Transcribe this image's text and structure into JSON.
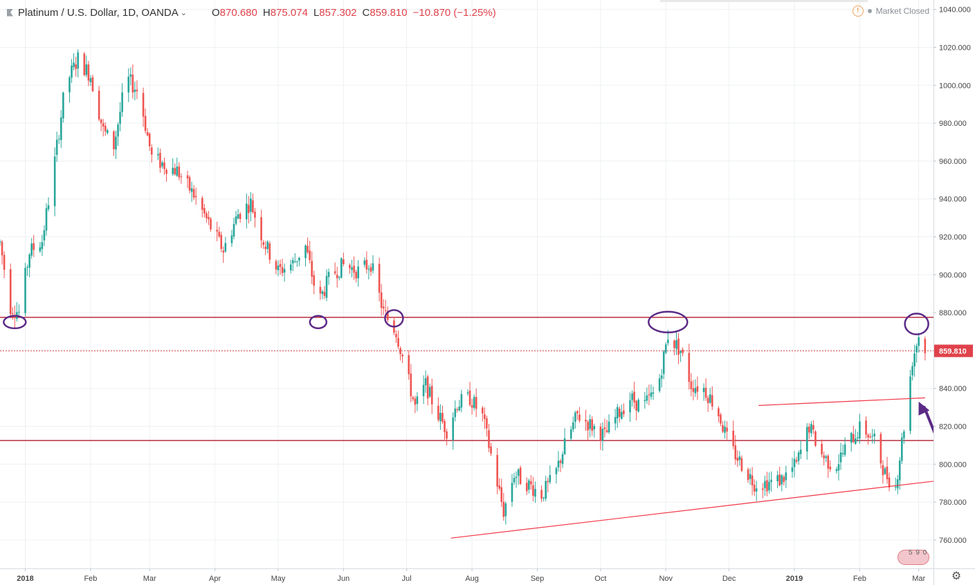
{
  "header": {
    "symbol": "Platinum / U.S. Dollar, 1D, OANDA",
    "caret": "⌄",
    "ohlc": [
      {
        "key": "O",
        "value": "870.680"
      },
      {
        "key": "H",
        "value": "875.074"
      },
      {
        "key": "L",
        "value": "857.302"
      },
      {
        "key": "C",
        "value": "859.810"
      }
    ],
    "change": "−10.870 (−1.25%)",
    "status_icon": "warning-icon",
    "market_status": "Market Closed"
  },
  "price_axis": {
    "ticks": [
      "1040.000",
      "1020.000",
      "1000.000",
      "980.000",
      "960.000",
      "940.000",
      "920.000",
      "900.000",
      "880.000",
      "860.000",
      "840.000",
      "820.000",
      "800.000",
      "780.000",
      "760.000"
    ],
    "last_price_label": "859.810",
    "last_price": 859.81
  },
  "time_axis": {
    "labels": [
      {
        "text": "2018",
        "bold": true
      },
      {
        "text": "Feb",
        "bold": false
      },
      {
        "text": "Mar",
        "bold": false
      },
      {
        "text": "Apr",
        "bold": false
      },
      {
        "text": "May",
        "bold": false
      },
      {
        "text": "Jun",
        "bold": false
      },
      {
        "text": "Jul",
        "bold": false
      },
      {
        "text": "Aug",
        "bold": false
      },
      {
        "text": "Sep",
        "bold": false
      },
      {
        "text": "Oct",
        "bold": false
      },
      {
        "text": "Nov",
        "bold": false
      },
      {
        "text": "Dec",
        "bold": false
      },
      {
        "text": "2019",
        "bold": true
      },
      {
        "text": "Feb",
        "bold": false
      },
      {
        "text": "Mar",
        "bold": false
      }
    ]
  },
  "badge": {
    "text": "5 9 0"
  },
  "settings_icon": "gear-icon",
  "colors": {
    "up": "#26a69a",
    "down": "#ef5350",
    "level_line": "#b2182b",
    "trend_line": "#f23645",
    "marker": "#5b2a86",
    "grid": "#eef0f3",
    "price_tag": "#e0424b"
  },
  "chart_data": {
    "type": "candlestick",
    "title": "Platinum / U.S. Dollar, 1D, OANDA",
    "ylim": [
      745,
      1045
    ],
    "x_range": [
      "2017-12-20",
      "2019-03-08"
    ],
    "horizontal_levels": [
      877.5,
      812.5
    ],
    "trend_lines": [
      {
        "name": "lower-support",
        "start": {
          "date": "2018-07-22",
          "price": 761
        },
        "end": {
          "date": "2019-03-08",
          "price": 791
        }
      },
      {
        "name": "upper-resistance",
        "start": {
          "date": "2018-12-15",
          "price": 831
        },
        "end": {
          "date": "2019-03-04",
          "price": 835
        }
      }
    ],
    "markers": [
      {
        "date": "2017-12-27",
        "price": 875
      },
      {
        "date": "2018-05-20",
        "price": 875
      },
      {
        "date": "2018-06-25",
        "price": 877
      },
      {
        "date": "2018-11-02",
        "price": 875
      },
      {
        "date": "2019-02-28",
        "price": 874
      }
    ],
    "arrow": {
      "from": {
        "date": "2019-03-12",
        "price": 807
      },
      "to": {
        "date": "2019-03-01",
        "price": 833
      }
    },
    "trend_path": [
      [
        "2017-12-20",
        917
      ],
      [
        "2017-12-25",
        883
      ],
      [
        "2017-12-29",
        880
      ],
      [
        "2018-01-03",
        912
      ],
      [
        "2018-01-09",
        918
      ],
      [
        "2018-01-15",
        960
      ],
      [
        "2018-01-20",
        1000
      ],
      [
        "2018-01-26",
        1014
      ],
      [
        "2018-02-01",
        1005
      ],
      [
        "2018-02-07",
        976
      ],
      [
        "2018-02-12",
        968
      ],
      [
        "2018-02-18",
        1004
      ],
      [
        "2018-02-24",
        996
      ],
      [
        "2018-03-02",
        962
      ],
      [
        "2018-03-08",
        958
      ],
      [
        "2018-03-14",
        955
      ],
      [
        "2018-03-22",
        942
      ],
      [
        "2018-03-30",
        925
      ],
      [
        "2018-04-05",
        913
      ],
      [
        "2018-04-12",
        932
      ],
      [
        "2018-04-18",
        938
      ],
      [
        "2018-04-24",
        918
      ],
      [
        "2018-05-01",
        902
      ],
      [
        "2018-05-08",
        906
      ],
      [
        "2018-05-14",
        915
      ],
      [
        "2018-05-20",
        885
      ],
      [
        "2018-05-26",
        900
      ],
      [
        "2018-06-01",
        905
      ],
      [
        "2018-06-08",
        902
      ],
      [
        "2018-06-14",
        906
      ],
      [
        "2018-06-20",
        880
      ],
      [
        "2018-06-26",
        870
      ],
      [
        "2018-07-01",
        848
      ],
      [
        "2018-07-05",
        830
      ],
      [
        "2018-07-10",
        842
      ],
      [
        "2018-07-15",
        828
      ],
      [
        "2018-07-20",
        818
      ],
      [
        "2018-07-25",
        832
      ],
      [
        "2018-07-31",
        835
      ],
      [
        "2018-08-06",
        825
      ],
      [
        "2018-08-12",
        795
      ],
      [
        "2018-08-16",
        775
      ],
      [
        "2018-08-21",
        795
      ],
      [
        "2018-08-27",
        790
      ],
      [
        "2018-09-03",
        784
      ],
      [
        "2018-09-09",
        793
      ],
      [
        "2018-09-14",
        810
      ],
      [
        "2018-09-20",
        826
      ],
      [
        "2018-09-27",
        820
      ],
      [
        "2018-10-03",
        815
      ],
      [
        "2018-10-09",
        826
      ],
      [
        "2018-10-15",
        835
      ],
      [
        "2018-10-21",
        830
      ],
      [
        "2018-10-28",
        840
      ],
      [
        "2018-11-02",
        868
      ],
      [
        "2018-11-08",
        860
      ],
      [
        "2018-11-13",
        842
      ],
      [
        "2018-11-19",
        840
      ],
      [
        "2018-11-25",
        830
      ],
      [
        "2018-12-01",
        810
      ],
      [
        "2018-12-07",
        800
      ],
      [
        "2018-12-13",
        790
      ],
      [
        "2018-12-19",
        790
      ],
      [
        "2018-12-26",
        792
      ],
      [
        "2019-01-02",
        800
      ],
      [
        "2019-01-08",
        820
      ],
      [
        "2019-01-14",
        805
      ],
      [
        "2019-01-20",
        798
      ],
      [
        "2019-01-27",
        812
      ],
      [
        "2019-02-02",
        820
      ],
      [
        "2019-02-08",
        812
      ],
      [
        "2019-02-13",
        795
      ],
      [
        "2019-02-18",
        788
      ],
      [
        "2019-02-22",
        820
      ],
      [
        "2019-02-26",
        855
      ],
      [
        "2019-03-01",
        868
      ],
      [
        "2019-03-04",
        860
      ]
    ]
  }
}
